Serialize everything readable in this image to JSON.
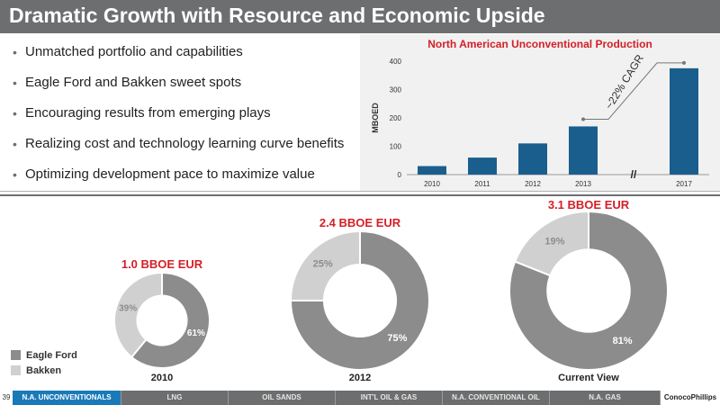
{
  "header": {
    "title": "Dramatic Growth with Resource and Economic Upside"
  },
  "bullets": [
    "Unmatched portfolio and capabilities",
    "Eagle Ford and Bakken sweet spots",
    "Encouraging results from emerging plays",
    "Realizing cost and technology learning curve benefits",
    "Optimizing development pace to maximize value"
  ],
  "bar_chart_title": "North American Unconventional Production",
  "cagr_label": "~22% CAGR",
  "break_label": "//",
  "legend": {
    "items": [
      {
        "label": "Eagle Ford",
        "color": "#8c8c8c"
      },
      {
        "label": "Bakken",
        "color": "#d0d0d0"
      }
    ]
  },
  "donuts": [
    {
      "eur": "1.0 BBOE EUR",
      "year": "2010",
      "eagle_ford": "61%",
      "bakken": "39%"
    },
    {
      "eur": "2.4 BBOE EUR",
      "year": "2012",
      "eagle_ford": "75%",
      "bakken": "25%"
    },
    {
      "eur": "3.1 BBOE EUR",
      "year": "Current View",
      "eagle_ford": "81%",
      "bakken": "19%"
    }
  ],
  "footer": {
    "page_number": "39",
    "tabs": [
      "N.A. UNCONVENTIONALS",
      "LNG",
      "OIL SANDS",
      "INT'L OIL & GAS",
      "N.A. CONVENTIONAL OIL",
      "N.A. GAS"
    ],
    "active_tab": 0,
    "logo": "ConocoPhillips"
  },
  "colors": {
    "bar": "#1a5e8e",
    "accent": "#d41f26",
    "eagle_ford": "#8c8c8c",
    "bakken": "#d0d0d0"
  },
  "chart_data": [
    {
      "type": "bar",
      "title": "North American Unconventional Production",
      "categories": [
        "2010",
        "2011",
        "2012",
        "2013",
        "2017"
      ],
      "values": [
        30,
        60,
        110,
        170,
        375
      ],
      "ylabel": "MBOED",
      "ylim": [
        0,
        400
      ],
      "yticks": [
        0,
        100,
        200,
        300,
        400
      ],
      "annotation": "~22% CAGR"
    },
    {
      "type": "pie",
      "title": "1.0 BBOE EUR",
      "xlabel": "2010",
      "labels": [
        "Eagle Ford",
        "Bakken"
      ],
      "values": [
        61,
        39
      ]
    },
    {
      "type": "pie",
      "title": "2.4 BBOE EUR",
      "xlabel": "2012",
      "labels": [
        "Eagle Ford",
        "Bakken"
      ],
      "values": [
        75,
        25
      ]
    },
    {
      "type": "pie",
      "title": "3.1 BBOE EUR",
      "xlabel": "Current View",
      "labels": [
        "Eagle Ford",
        "Bakken"
      ],
      "values": [
        81,
        19
      ]
    }
  ]
}
